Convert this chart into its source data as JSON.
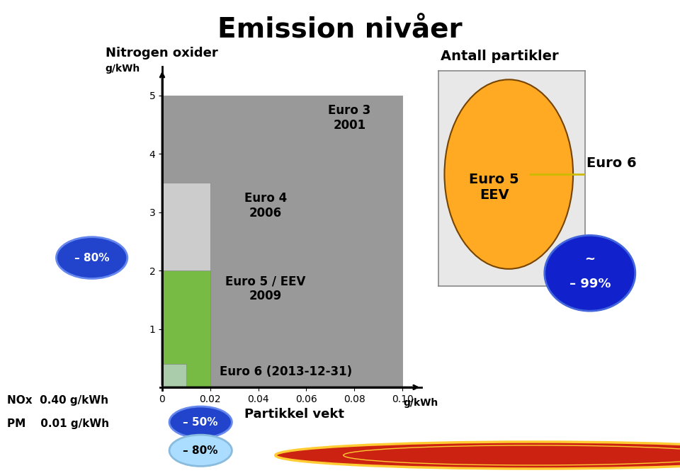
{
  "title": "Emission nivåer",
  "bg_color": "#ffffff",
  "left_panel": {
    "nitrogen_label": "Nitrogen oxider",
    "y_unit": "g/kWh",
    "x_unit": "g/kWh",
    "x_label": "Partikkel vekt",
    "bars": [
      {
        "label": "Euro 3\n2001",
        "nox": 5.0,
        "pm": 0.1,
        "color": "#999999"
      },
      {
        "label": "Euro 4\n2006",
        "nox": 3.5,
        "pm": 0.02,
        "color": "#cccccc"
      },
      {
        "label": "Euro 5 / EEV\n2009",
        "nox": 2.0,
        "pm": 0.02,
        "color": "#77bb44"
      },
      {
        "label": "Euro 6 (2013-12-31)",
        "nox": 0.4,
        "pm": 0.01,
        "color": "#aaccaa"
      }
    ],
    "nox_reduction": "– 80%",
    "pm_reduction1": "– 50%",
    "pm_reduction2": "– 80%",
    "bottom_label1": "NOx  0.40 g/kWh",
    "bottom_label2": "PM    0.01 g/kWh"
  },
  "right_panel": {
    "title": "Antall partikler",
    "circle_euro5_color": "#ffaa22",
    "circle_euro6_label": "Euro 6"
  },
  "scania_bar_color": "#111111"
}
